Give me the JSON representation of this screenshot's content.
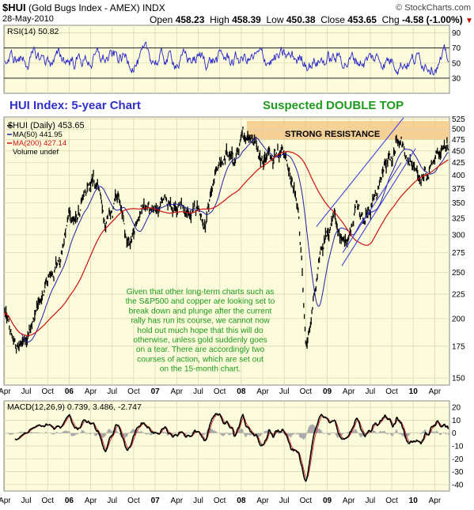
{
  "header": {
    "symbol": "$HUI",
    "name": "(Gold Bugs Index - AMEX) INDX",
    "date": "28-May-2010",
    "watermark": "© StockCharts.com",
    "open_label": "Open",
    "open": "458.23",
    "high_label": "High",
    "high": "458.39",
    "low_label": "Low",
    "low": "450.38",
    "close_label": "Close",
    "close": "453.65",
    "chg_label": "Chg",
    "chg": "-4.58 (-1.00%)"
  },
  "colors": {
    "panel_bg": "#fcfcdc",
    "grid": "#d9d9b0",
    "price": "#000000",
    "ma50": "#1f1fa8",
    "ma200": "#cc1111",
    "rsi": "#2424c8",
    "resistance": "#f5c98a",
    "trend": "#4040e0",
    "annotation_blue": "#3030c8",
    "annotation_green": "#1e9a1e"
  },
  "chart_data": [
    {
      "type": "line",
      "title": "RSI(14) 50.82",
      "ylim": [
        10,
        100
      ],
      "yticks": [
        "90",
        "70",
        "50",
        "30"
      ],
      "levels": [
        70,
        30
      ],
      "series": [
        {
          "name": "RSI(14)",
          "last": 50.82
        }
      ]
    },
    {
      "type": "candlestick",
      "legend": [
        "$HUI (Daily) 453.65",
        "MA(50) 441.95",
        "MA(200) 427.14",
        "Volume undef"
      ],
      "ylim": [
        145,
        530
      ],
      "yscale": "log",
      "yticks": [
        "525",
        "500",
        "475",
        "450",
        "425",
        "400",
        "375",
        "350",
        "325",
        "300",
        "275",
        "250",
        "225",
        "200",
        "175",
        "150"
      ],
      "xticks": [
        "Apr",
        "Jul",
        "Oct",
        "06",
        "Apr",
        "Jul",
        "Oct",
        "07",
        "Apr",
        "Jul",
        "Oct",
        "08",
        "Apr",
        "Jul",
        "Oct",
        "09",
        "Apr",
        "Jul",
        "Oct",
        "10",
        "Apr"
      ],
      "x_range": [
        "2005-04",
        "2010-05"
      ],
      "price_keypoints": [
        [
          "2005-04",
          205
        ],
        [
          "2005-05",
          182
        ],
        [
          "2005-06",
          172
        ],
        [
          "2005-07",
          185
        ],
        [
          "2005-08",
          198
        ],
        [
          "2005-09",
          218
        ],
        [
          "2005-10",
          240
        ],
        [
          "2005-11",
          252
        ],
        [
          "2005-12",
          280
        ],
        [
          "2006-01",
          330
        ],
        [
          "2006-02",
          320
        ],
        [
          "2006-03",
          355
        ],
        [
          "2006-04",
          380
        ],
        [
          "2006-05",
          392
        ],
        [
          "2006-06",
          310
        ],
        [
          "2006-07",
          340
        ],
        [
          "2006-08",
          355
        ],
        [
          "2006-09",
          290
        ],
        [
          "2006-10",
          310
        ],
        [
          "2006-11",
          345
        ],
        [
          "2006-12",
          345
        ],
        [
          "2007-01",
          328
        ],
        [
          "2007-02",
          360
        ],
        [
          "2007-03",
          342
        ],
        [
          "2007-04",
          352
        ],
        [
          "2007-05",
          340
        ],
        [
          "2007-06",
          326
        ],
        [
          "2007-07",
          345
        ],
        [
          "2007-08",
          306
        ],
        [
          "2007-09",
          372
        ],
        [
          "2007-10",
          420
        ],
        [
          "2007-11",
          440
        ],
        [
          "2007-12",
          425
        ],
        [
          "2008-01",
          470
        ],
        [
          "2008-02",
          495
        ],
        [
          "2008-03",
          472
        ],
        [
          "2008-04",
          430
        ],
        [
          "2008-05",
          448
        ],
        [
          "2008-06",
          455
        ],
        [
          "2008-07",
          450
        ],
        [
          "2008-08",
          390
        ],
        [
          "2008-09",
          330
        ],
        [
          "2008-10",
          180
        ],
        [
          "2008-11",
          205
        ],
        [
          "2008-12",
          270
        ],
        [
          "2009-01",
          300
        ],
        [
          "2009-02",
          330
        ],
        [
          "2009-03",
          290
        ],
        [
          "2009-04",
          290
        ],
        [
          "2009-05",
          345
        ],
        [
          "2009-06",
          330
        ],
        [
          "2009-07",
          340
        ],
        [
          "2009-08",
          365
        ],
        [
          "2009-09",
          420
        ],
        [
          "2009-10",
          430
        ],
        [
          "2009-11",
          490
        ],
        [
          "2009-12",
          440
        ],
        [
          "2010-01",
          420
        ],
        [
          "2010-02",
          385
        ],
        [
          "2010-03",
          410
        ],
        [
          "2010-04",
          445
        ],
        [
          "2010-05",
          465
        ],
        [
          "2010-05-28",
          453.65
        ]
      ],
      "annotations": {
        "title": "HUI Index: 5-year Chart",
        "pattern": "Suspected DOUBLE TOP",
        "zone": "STRONG RESISTANCE",
        "zone_range": [
          475,
          520
        ],
        "note_lines": [
          "Given that other long-term charts such as",
          "the S&P500 and copper are looking set to",
          "break down and plunge after the current",
          "rally has run its course, we cannot now",
          "hold out much hope that this will do",
          "otherwise, unless gold suddenly goes",
          "on a tear. There are accordingly two",
          "courses of action, which are set out",
          "on the 15-month chart."
        ]
      }
    },
    {
      "type": "line",
      "title": "MACD(12,26,9) 0.739, 3.486, -2.747",
      "ylim": [
        -45,
        25
      ],
      "yticks": [
        "20",
        "10",
        "0",
        "-10",
        "-20",
        "-30",
        "-40"
      ],
      "values": {
        "macd": 0.739,
        "signal": 3.486,
        "histogram": -2.747
      }
    }
  ]
}
